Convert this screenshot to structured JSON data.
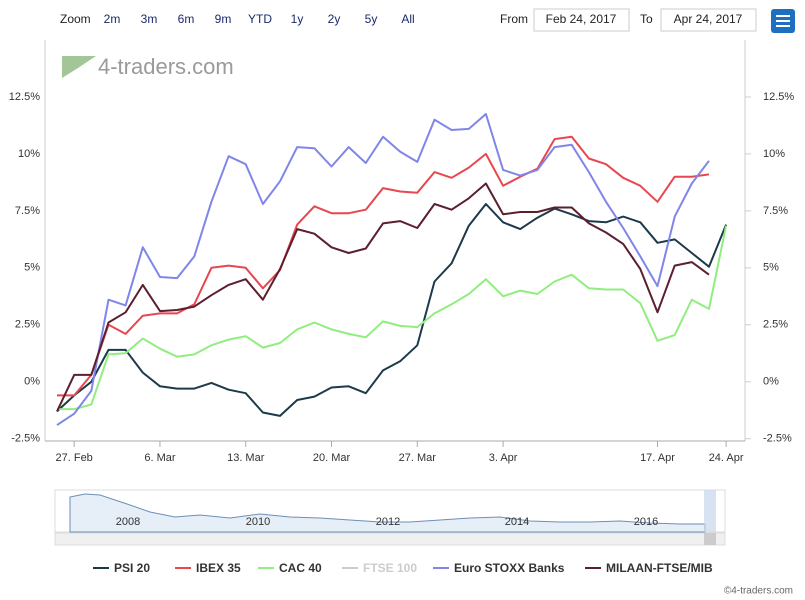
{
  "chart_data": {
    "type": "line",
    "zoom": {
      "label": "Zoom",
      "buttons": [
        "2m",
        "3m",
        "6m",
        "9m",
        "YTD",
        "1y",
        "2y",
        "5y",
        "All"
      ]
    },
    "range": {
      "from_label": "From",
      "from": "Feb 24, 2017",
      "to_label": "To",
      "to": "Apr 24, 2017"
    },
    "watermark": "4-traders.com",
    "credit": "©4-traders.com",
    "navigator_years": [
      "2008",
      "2010",
      "2012",
      "2014",
      "2016"
    ],
    "x": [
      0,
      1,
      2,
      3,
      4,
      5,
      6,
      7,
      8,
      9,
      10,
      11,
      12,
      13,
      14,
      15,
      16,
      17,
      18,
      19,
      20,
      21,
      22,
      23,
      24,
      25,
      26,
      27,
      28,
      29,
      30,
      31,
      32,
      33,
      34,
      35,
      36,
      37,
      38,
      39
    ],
    "xlim": [
      -0.7,
      40.1
    ],
    "xticks": [
      {
        "value": 1,
        "label": "27. Feb"
      },
      {
        "value": 6,
        "label": "6. Mar"
      },
      {
        "value": 11,
        "label": "13. Mar"
      },
      {
        "value": 16,
        "label": "20. Mar"
      },
      {
        "value": 21,
        "label": "27. Mar"
      },
      {
        "value": 26,
        "label": "3. Apr"
      },
      {
        "value": 35,
        "label": "17. Apr"
      },
      {
        "value": 39,
        "label": "24. Apr"
      }
    ],
    "ylim": [
      -2.6,
      15
    ],
    "yticks": [
      {
        "value": -2.5,
        "label": "-2.5%"
      },
      {
        "value": 0,
        "label": "0%"
      },
      {
        "value": 2.5,
        "label": "2.5%"
      },
      {
        "value": 5,
        "label": "5%"
      },
      {
        "value": 7.5,
        "label": "7.5%"
      },
      {
        "value": 10,
        "label": "10%"
      },
      {
        "value": 12.5,
        "label": "12.5%"
      }
    ],
    "series": [
      {
        "name": "PSI 20",
        "color": "#1c3a4a",
        "visible": true,
        "values": [
          -1.3,
          -0.6,
          0,
          1.4,
          1.4,
          0.4,
          -0.2,
          -0.3,
          -0.3,
          -0.05,
          -0.35,
          -0.5,
          -1.35,
          -1.5,
          -0.8,
          -0.65,
          -0.25,
          -0.2,
          -0.5,
          0.5,
          0.9,
          1.6,
          4.4,
          5.2,
          6.85,
          7.8,
          7.0,
          6.7,
          7.2,
          7.6,
          7.35,
          7.05,
          7.0,
          7.25,
          7.0,
          6.1,
          6.25,
          5.65,
          5.05,
          6.9
        ]
      },
      {
        "name": "IBEX 35",
        "color": "#e8474f",
        "visible": true,
        "values": [
          -0.6,
          -0.6,
          0.3,
          2.5,
          2.1,
          2.9,
          3.0,
          3.0,
          3.4,
          5.0,
          5.1,
          5.0,
          4.1,
          4.9,
          6.9,
          7.7,
          7.4,
          7.4,
          7.55,
          8.5,
          8.35,
          8.3,
          9.2,
          8.95,
          9.4,
          10.0,
          8.6,
          9.0,
          9.35,
          10.65,
          10.75,
          9.8,
          9.55,
          8.95,
          8.6,
          7.9,
          9.0,
          9.0,
          9.1,
          null
        ]
      },
      {
        "name": "CAC 40",
        "color": "#90ee7e",
        "visible": true,
        "values": [
          -1.2,
          -1.2,
          -1.0,
          1.2,
          1.25,
          1.9,
          1.45,
          1.1,
          1.2,
          1.6,
          1.85,
          2.0,
          1.5,
          1.7,
          2.3,
          2.6,
          2.3,
          2.1,
          1.95,
          2.65,
          2.45,
          2.4,
          3.0,
          3.4,
          3.85,
          4.5,
          3.75,
          4.0,
          3.85,
          4.4,
          4.7,
          4.1,
          4.05,
          4.05,
          3.45,
          1.8,
          2.05,
          3.6,
          3.2,
          6.85
        ]
      },
      {
        "name": "FTSE 100",
        "color": "#cccccc",
        "visible": false
      },
      {
        "name": "Euro STOXX Banks",
        "color": "#8085e9",
        "visible": true,
        "values": [
          -1.9,
          -1.4,
          -0.4,
          3.6,
          3.35,
          5.9,
          4.6,
          4.55,
          5.5,
          7.9,
          9.9,
          9.55,
          7.8,
          8.8,
          10.3,
          10.25,
          9.45,
          10.3,
          9.6,
          10.75,
          10.1,
          9.65,
          11.5,
          11.05,
          11.1,
          11.75,
          9.3,
          9.05,
          9.3,
          10.3,
          10.4,
          9.2,
          7.9,
          6.75,
          5.5,
          4.2,
          7.25,
          8.7,
          9.7,
          null
        ]
      },
      {
        "name": "MILAAN-FTSE/MIB",
        "color": "#5c1f2e",
        "visible": true,
        "values": [
          -1.3,
          0.3,
          0.3,
          2.6,
          3.05,
          4.25,
          3.1,
          3.15,
          3.3,
          3.8,
          4.25,
          4.5,
          3.6,
          4.95,
          6.7,
          6.5,
          5.9,
          5.65,
          5.85,
          6.95,
          7.05,
          6.75,
          7.8,
          7.55,
          8.05,
          8.7,
          7.35,
          7.45,
          7.45,
          7.65,
          7.65,
          6.95,
          6.55,
          6.05,
          4.95,
          3.05,
          5.1,
          5.25,
          4.7,
          null
        ]
      }
    ]
  }
}
